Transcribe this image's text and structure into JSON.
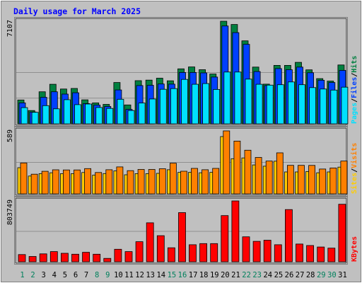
{
  "chart_data": {
    "type": "bar",
    "title": "Daily usage for March 2025",
    "categories": [
      "1",
      "2",
      "3",
      "4",
      "5",
      "6",
      "7",
      "8",
      "9",
      "10",
      "11",
      "12",
      "13",
      "14",
      "15",
      "16",
      "17",
      "18",
      "19",
      "20",
      "21",
      "22",
      "23",
      "24",
      "25",
      "26",
      "27",
      "28",
      "29",
      "30",
      "31"
    ],
    "weekend_days": [
      "1",
      "2",
      "8",
      "9",
      "15",
      "16",
      "22",
      "23",
      "29",
      "30"
    ],
    "colors": {
      "hits": "#008040",
      "files": "#0040ff",
      "pages": "#00e0ff",
      "visits": "#ff8000",
      "sites": "#ffcc00",
      "kbytes": "#ff0000",
      "title": "#0000ff",
      "weekday_label": "#000000",
      "weekend_label": "#00805c"
    },
    "panels": [
      {
        "id": "hits-files-pages",
        "max_label": "7107",
        "ylim": [
          0,
          7107
        ],
        "legend": [
          "Pages",
          "/",
          "Files",
          "/",
          "Hits"
        ],
        "series": [
          {
            "name": "Hits",
            "key": "hits",
            "values": [
              1650,
              920,
              2220,
              2740,
              2410,
              2450,
              1660,
              1450,
              1350,
              2860,
              1310,
              2990,
              3030,
              3160,
              2980,
              3810,
              3940,
              3750,
              3450,
              7107,
              6880,
              5750,
              3930,
              2750,
              4050,
              4050,
              4260,
              3740,
              3130,
              2960,
              4080
            ]
          },
          {
            "name": "Files",
            "key": "files",
            "values": [
              1450,
              820,
              1840,
              2220,
              2060,
              2150,
              1400,
              1300,
              1200,
              2350,
              1000,
              2650,
              2670,
              2760,
              2750,
              3560,
              3560,
              3530,
              3240,
              6780,
              6320,
              5510,
              3620,
              2650,
              3830,
              3750,
              3930,
              3540,
              3020,
              2860,
              3700
            ]
          },
          {
            "name": "Pages",
            "key": "pages",
            "values": [
              1120,
              800,
              1260,
              1040,
              1670,
              1330,
              1370,
              1130,
              1070,
              1700,
              920,
              1440,
              1720,
              2390,
              2440,
              3080,
              2740,
              2790,
              2380,
              3590,
              3590,
              3100,
              2740,
              2680,
              2710,
              2900,
              2710,
              2510,
              2410,
              2340,
              2540
            ]
          }
        ]
      },
      {
        "id": "visits-sites",
        "max_label": "589",
        "ylim": [
          0,
          589
        ],
        "legend": [
          "Sites",
          "/",
          "Visits"
        ],
        "series": [
          {
            "name": "Visits",
            "key": "visits",
            "values": [
              289,
              184,
              211,
              225,
              224,
              224,
              236,
              200,
              226,
              252,
              217,
              228,
              228,
              235,
              287,
              212,
              238,
              226,
              238,
              589,
              494,
              408,
              341,
              307,
              384,
              267,
              267,
              266,
              232,
              242,
              307
            ]
          },
          {
            "name": "Sites",
            "key": "sites",
            "values": [
              245,
              167,
              189,
              197,
              189,
              189,
              200,
              175,
              190,
              215,
              179,
              189,
              189,
              192,
              226,
              201,
              201,
              197,
              201,
              536,
              329,
              336,
              271,
              259,
              306,
              205,
              205,
              209,
              197,
              205,
              250
            ]
          }
        ]
      },
      {
        "id": "kbytes",
        "max_label": "803749",
        "ylim": [
          0,
          803749
        ],
        "legend": [
          "KBytes"
        ],
        "series": [
          {
            "name": "KBytes",
            "key": "kbytes",
            "values": [
              95000,
              70000,
              105000,
              135000,
              112000,
              100000,
              125000,
              100000,
              45000,
              165000,
              135000,
              265000,
              515000,
              345000,
              185000,
              650000,
              225000,
              240000,
              240000,
              610000,
              803749,
              330000,
              270000,
              285000,
              225000,
              690000,
              235000,
              215000,
              195000,
              180000,
              760000
            ]
          }
        ]
      }
    ]
  }
}
